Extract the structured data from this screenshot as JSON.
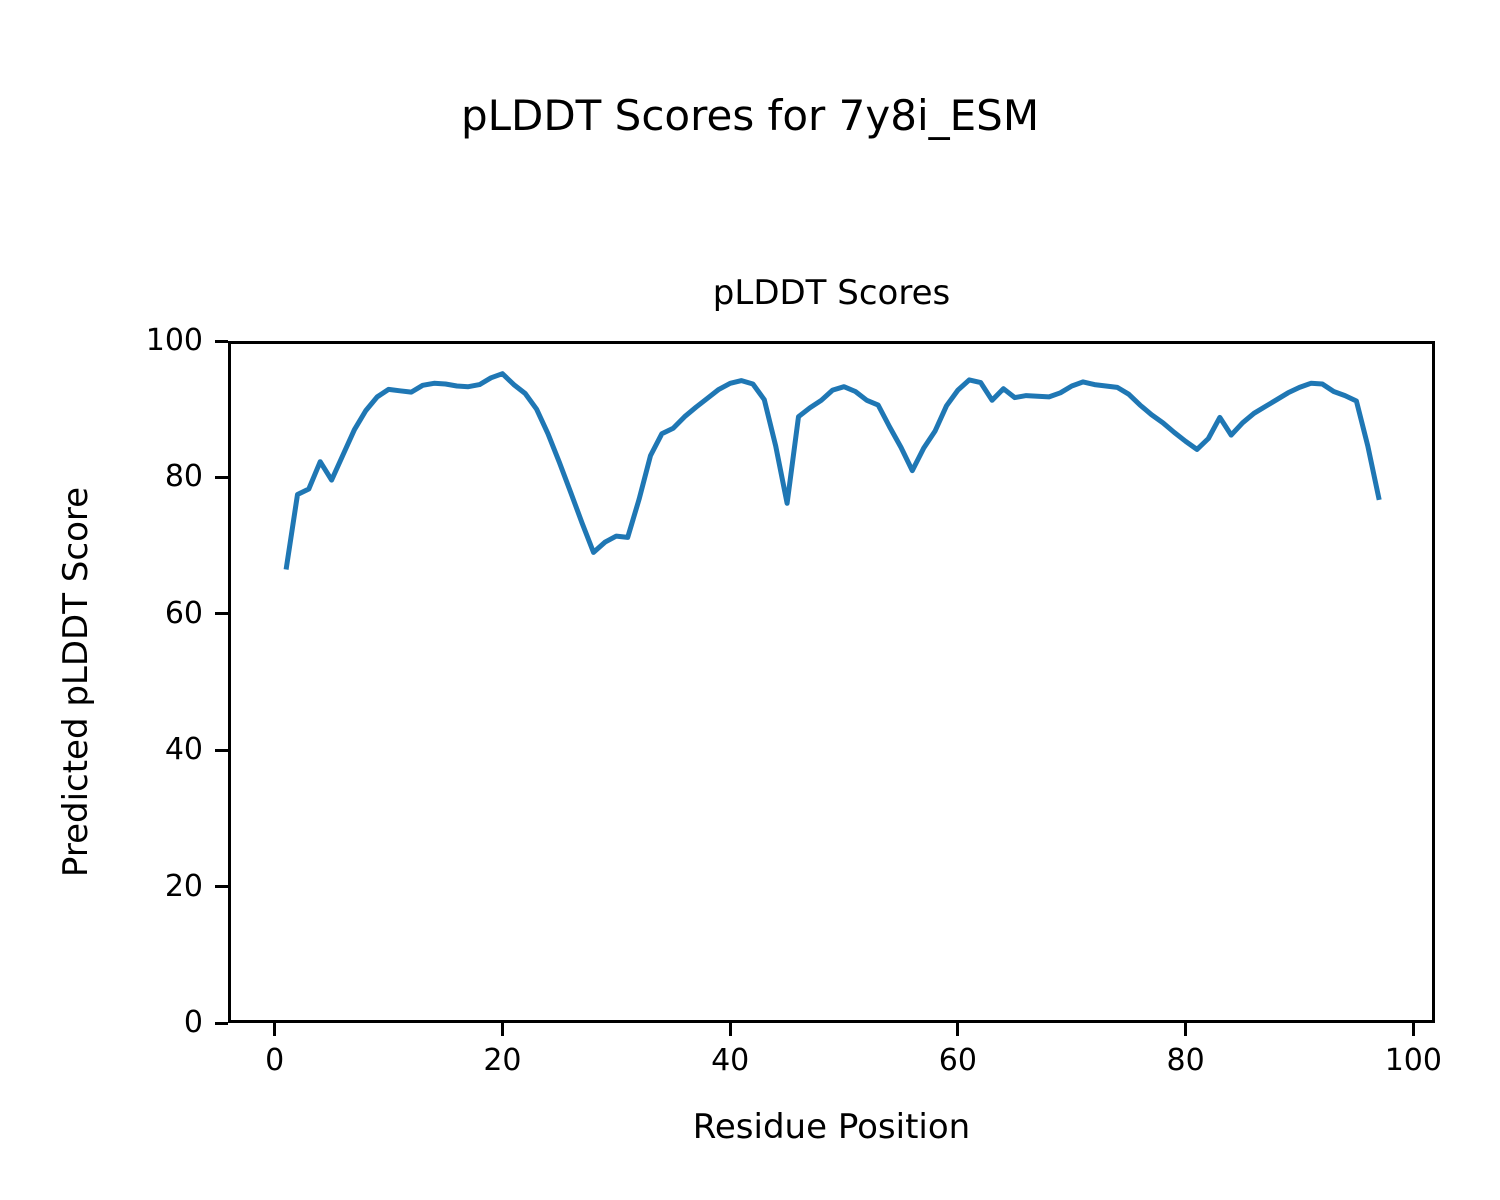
{
  "figure": {
    "suptitle": "pLDDT Scores for 7y8i_ESM",
    "background_color": "#ffffff",
    "spine_color": "#000000"
  },
  "chart_data": {
    "type": "line",
    "title": "pLDDT Scores",
    "xlabel": "Residue Position",
    "ylabel": "Predicted pLDDT Score",
    "series_name": "pLDDT",
    "line_color": "#1f77b4",
    "line_width": 5,
    "grid": false,
    "legend": false,
    "xlim": [
      -4.1,
      101.9
    ],
    "ylim": [
      0,
      100
    ],
    "xticks": [
      0,
      20,
      40,
      60,
      80,
      100
    ],
    "yticks": [
      0,
      20,
      40,
      60,
      80,
      100
    ],
    "x_start": 1,
    "x_step": 1,
    "x_end": 97,
    "values": [
      66.5,
      77.5,
      78.3,
      82.3,
      79.6,
      83.3,
      87.0,
      89.8,
      91.8,
      92.9,
      92.7,
      92.5,
      93.5,
      93.8,
      93.7,
      93.4,
      93.3,
      93.6,
      94.6,
      95.2,
      93.6,
      92.3,
      90.0,
      86.4,
      82.2,
      77.8,
      73.3,
      69.0,
      70.5,
      71.4,
      71.2,
      76.8,
      83.2,
      86.4,
      87.2,
      88.9,
      90.3,
      91.6,
      92.9,
      93.8,
      94.2,
      93.7,
      91.4,
      84.6,
      76.2,
      88.9,
      90.2,
      91.3,
      92.8,
      93.3,
      92.6,
      91.3,
      90.6,
      87.4,
      84.4,
      81.0,
      84.3,
      86.8,
      90.5,
      92.8,
      94.3,
      93.9,
      91.3,
      93.0,
      91.7,
      92.0,
      91.9,
      91.8,
      92.4,
      93.4,
      94.0,
      93.6,
      93.4,
      93.2,
      92.2,
      90.6,
      89.2,
      88.0,
      86.6,
      85.3,
      84.1,
      85.7,
      88.8,
      86.2,
      88.0,
      89.4,
      90.4,
      91.4,
      92.4,
      93.2,
      93.8,
      93.7,
      92.6,
      92.0,
      91.2,
      84.6,
      76.7
    ]
  }
}
